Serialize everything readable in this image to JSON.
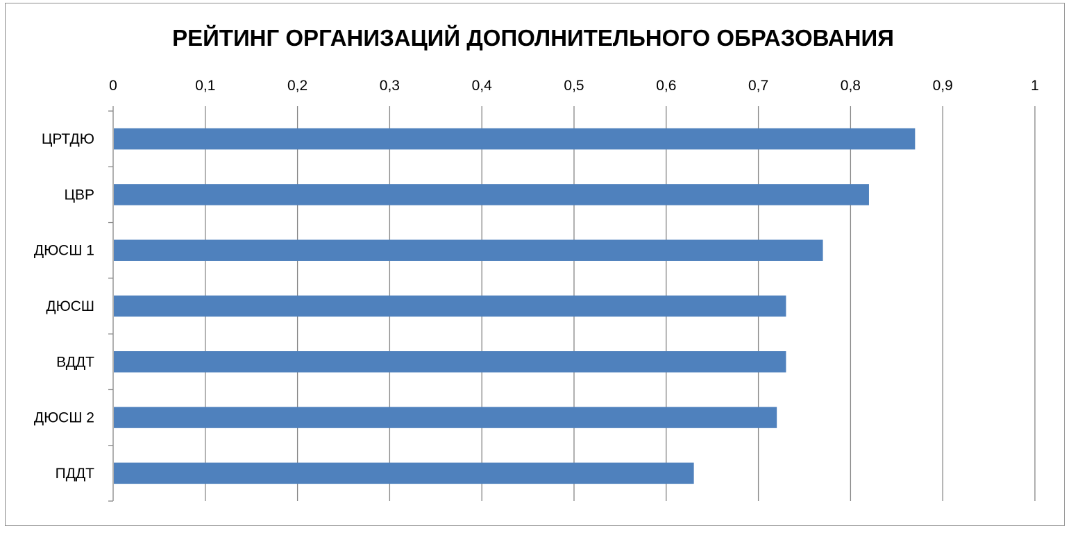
{
  "chart_data": {
    "type": "bar",
    "orientation": "horizontal",
    "title": "РЕЙТИНГ  ОРГАНИЗАЦИЙ  ДОПОЛНИТЕЛЬНОГО ОБРАЗОВАНИЯ",
    "categories": [
      "ЦРТДЮ",
      "ЦВР",
      "ДЮСШ 1",
      "ДЮСШ",
      "ВДДТ",
      "ДЮСШ 2",
      "ПДДТ"
    ],
    "values": [
      0.87,
      0.82,
      0.77,
      0.73,
      0.73,
      0.72,
      0.63
    ],
    "xlim": [
      0,
      1
    ],
    "xticks": [
      0,
      0.1,
      0.2,
      0.3,
      0.4,
      0.5,
      0.6,
      0.7,
      0.8,
      0.9,
      1
    ],
    "xtick_labels": [
      "0",
      "0,1",
      "0,2",
      "0,3",
      "0,4",
      "0,5",
      "0,6",
      "0,7",
      "0,8",
      "0,9",
      "1"
    ],
    "value_axis_position": "top",
    "grid": true,
    "legend": "none",
    "bar_color": "#4f81bd",
    "grid_color": "#868686"
  }
}
